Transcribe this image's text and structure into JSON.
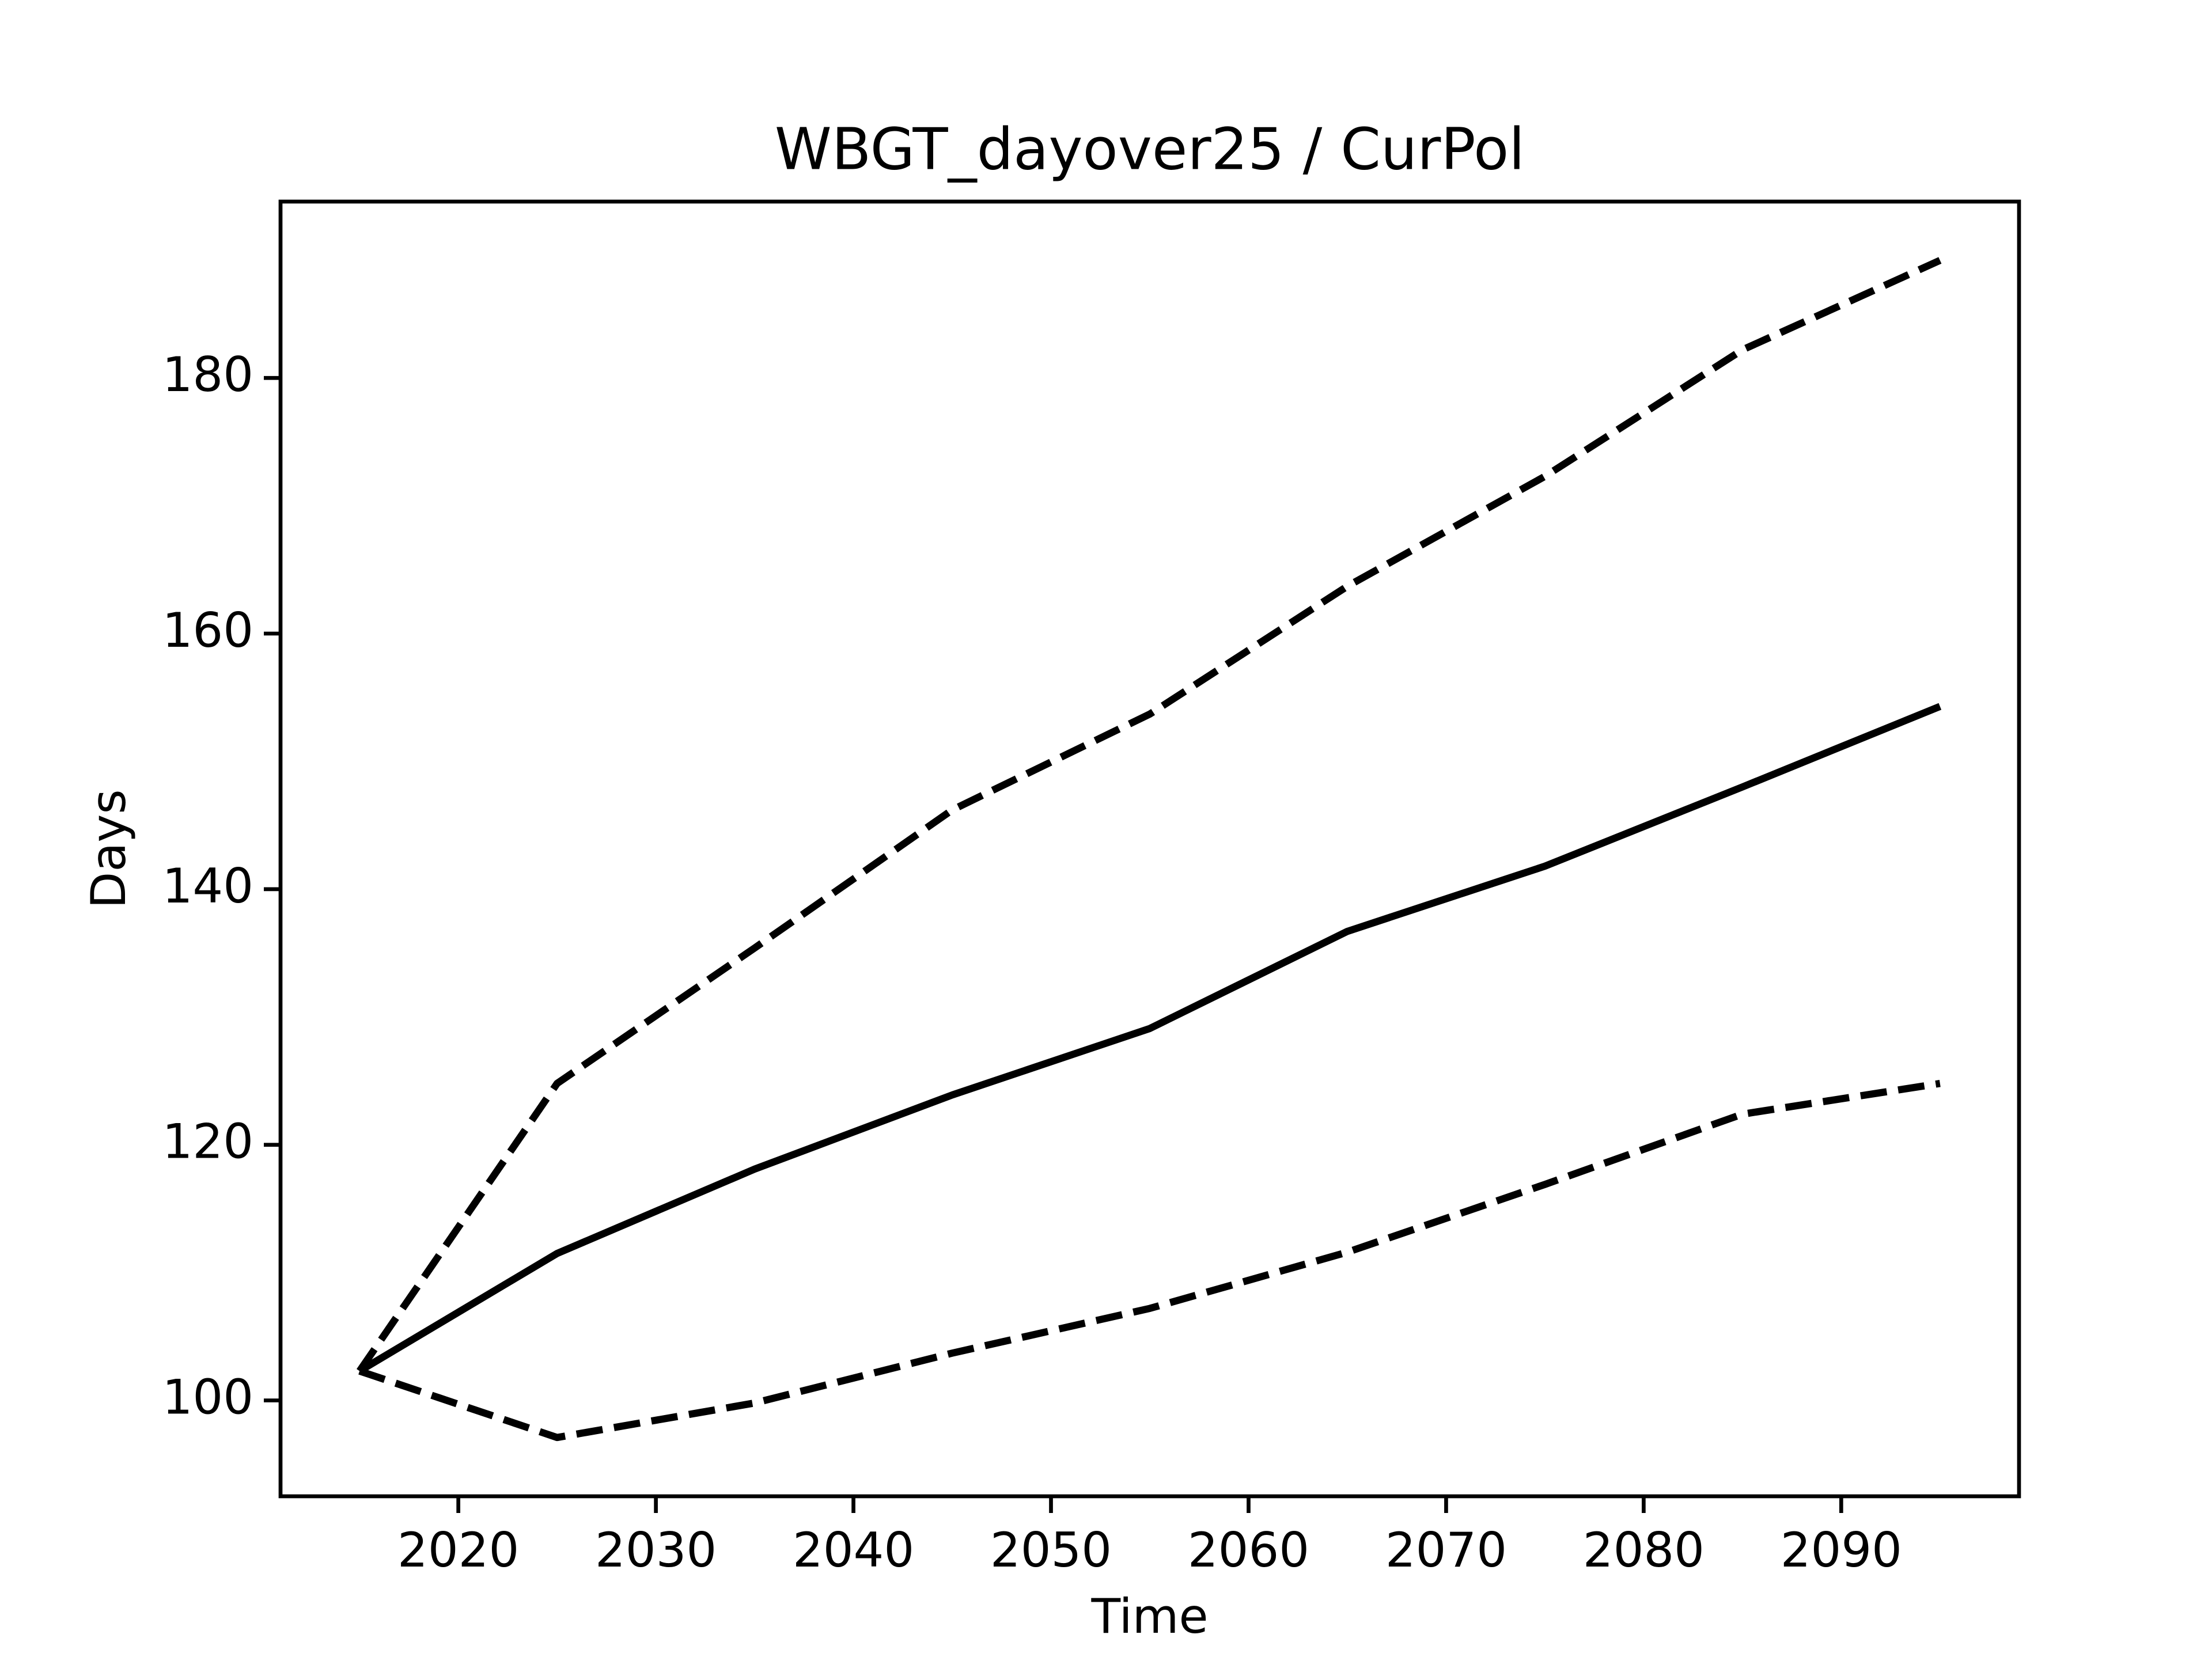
{
  "chart_data": {
    "type": "line",
    "title": "WBGT_dayover25 / CurPol",
    "x_label": "Time",
    "y_label": "Days",
    "x": [
      2015,
      2025,
      2035,
      2045,
      2055,
      2065,
      2075,
      2085,
      2095
    ],
    "series": [
      {
        "color": "#000000",
        "dashed": false,
        "values": [
          102.3,
          111.5,
          118.1,
          123.9,
          129.1,
          136.7,
          141.8,
          148.0,
          154.3
        ]
      },
      {
        "color": "#000000",
        "dashed": true,
        "values": [
          102.3,
          124.8,
          135.4,
          146.2,
          153.7,
          163.7,
          172.3,
          182.2,
          189.2
        ]
      },
      {
        "color": "#000000",
        "dashed": true,
        "values": [
          102.3,
          97.1,
          99.8,
          103.7,
          107.2,
          111.6,
          116.9,
          122.4,
          124.8
        ]
      }
    ],
    "xlim": [
      2011,
      2099
    ],
    "ylim": [
      92.5,
      193.8
    ],
    "xticks": [
      2020,
      2030,
      2040,
      2050,
      2060,
      2070,
      2080,
      2090
    ],
    "yticks": [
      100,
      120,
      140,
      160,
      180
    ],
    "grid": false
  }
}
